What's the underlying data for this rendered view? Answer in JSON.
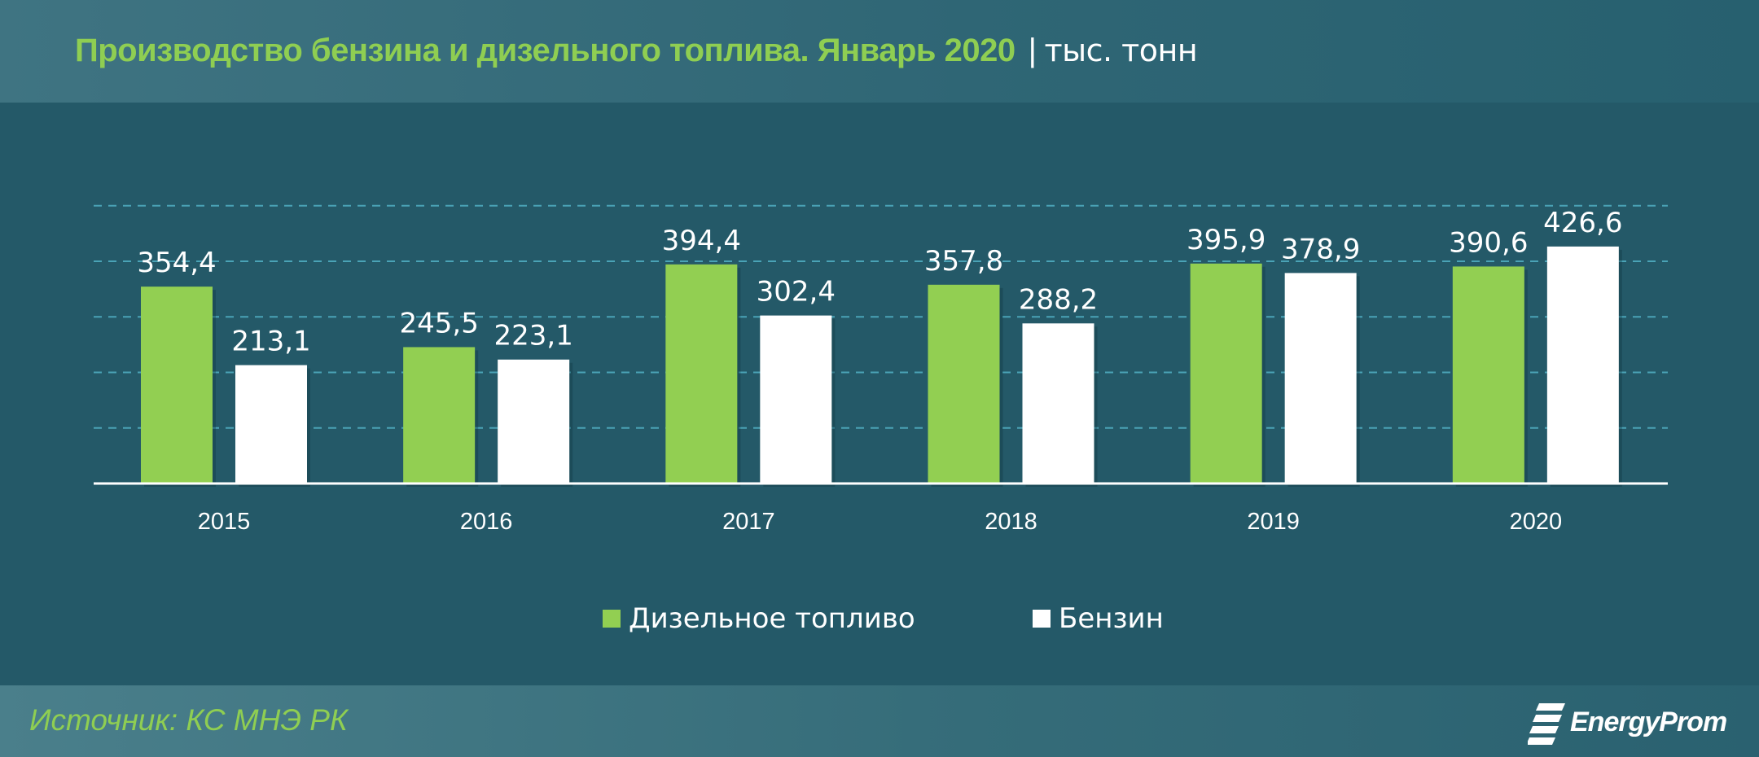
{
  "header": {
    "title": "Производство бензина и дизельного топлива. Январь 2020",
    "separator": "|",
    "unit": "тыс. тонн"
  },
  "footer": {
    "source": "Источник: КС МНЭ РК",
    "logo_text": "EnergyProm"
  },
  "colors": {
    "background": "#245968",
    "diesel": "#92cf52",
    "gasoline": "#ffffff",
    "title": "#8fce52",
    "gridline": "#4aa3b6"
  },
  "chart_data": {
    "type": "bar",
    "title": "Производство бензина и дизельного топлива. Январь 2020",
    "ylabel": "тыс. тонн",
    "categories": [
      "2015",
      "2016",
      "2017",
      "2018",
      "2019",
      "2020"
    ],
    "series": [
      {
        "name": "Дизельное топливо",
        "color": "#92cf52",
        "values": [
          354.4,
          245.5,
          394.4,
          357.8,
          395.9,
          390.6
        ],
        "labels": [
          "354,4",
          "245,5",
          "394,4",
          "357,8",
          "395,9",
          "390,6"
        ]
      },
      {
        "name": "Бензин",
        "color": "#ffffff",
        "values": [
          213.1,
          223.1,
          302.4,
          288.2,
          378.9,
          426.6
        ],
        "labels": [
          "213,1",
          "223,1",
          "302,4",
          "288,2",
          "378,9",
          "426,6"
        ]
      }
    ],
    "ylim": [
      0,
      500
    ],
    "grid": true,
    "legend_position": "bottom"
  }
}
